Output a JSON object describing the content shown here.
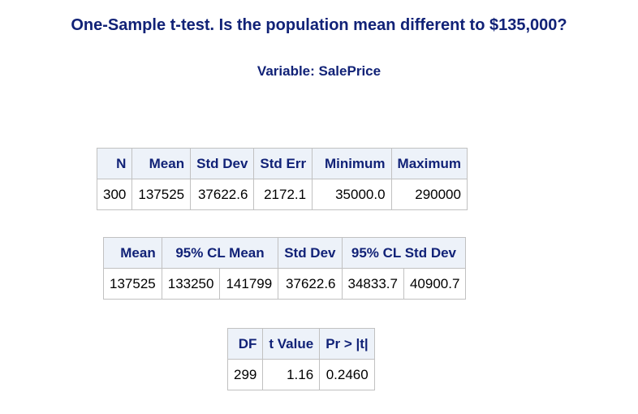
{
  "title": "One-Sample t-test. Is the population mean different to $135,000?",
  "subtitle": "Variable: SalePrice",
  "stats_table": {
    "headers": [
      "N",
      "Mean",
      "Std Dev",
      "Std Err",
      "Minimum",
      "Maximum"
    ],
    "row": [
      "300",
      "137525",
      "37622.6",
      "2172.1",
      "35000.0",
      "290000"
    ]
  },
  "cl_table": {
    "headers": {
      "mean": "Mean",
      "cl_mean": "95% CL Mean",
      "std_dev": "Std Dev",
      "cl_std_dev": "95% CL Std Dev"
    },
    "row": [
      "137525",
      "133250",
      "141799",
      "37622.6",
      "34833.7",
      "40900.7"
    ]
  },
  "ttest_table": {
    "headers": [
      "DF",
      "t Value",
      "Pr > |t|"
    ],
    "row": [
      "299",
      "1.16",
      "0.2460"
    ]
  },
  "colors": {
    "header_text": "#112277",
    "header_bg": "#edf2f9",
    "border": "#c1c1c1"
  }
}
